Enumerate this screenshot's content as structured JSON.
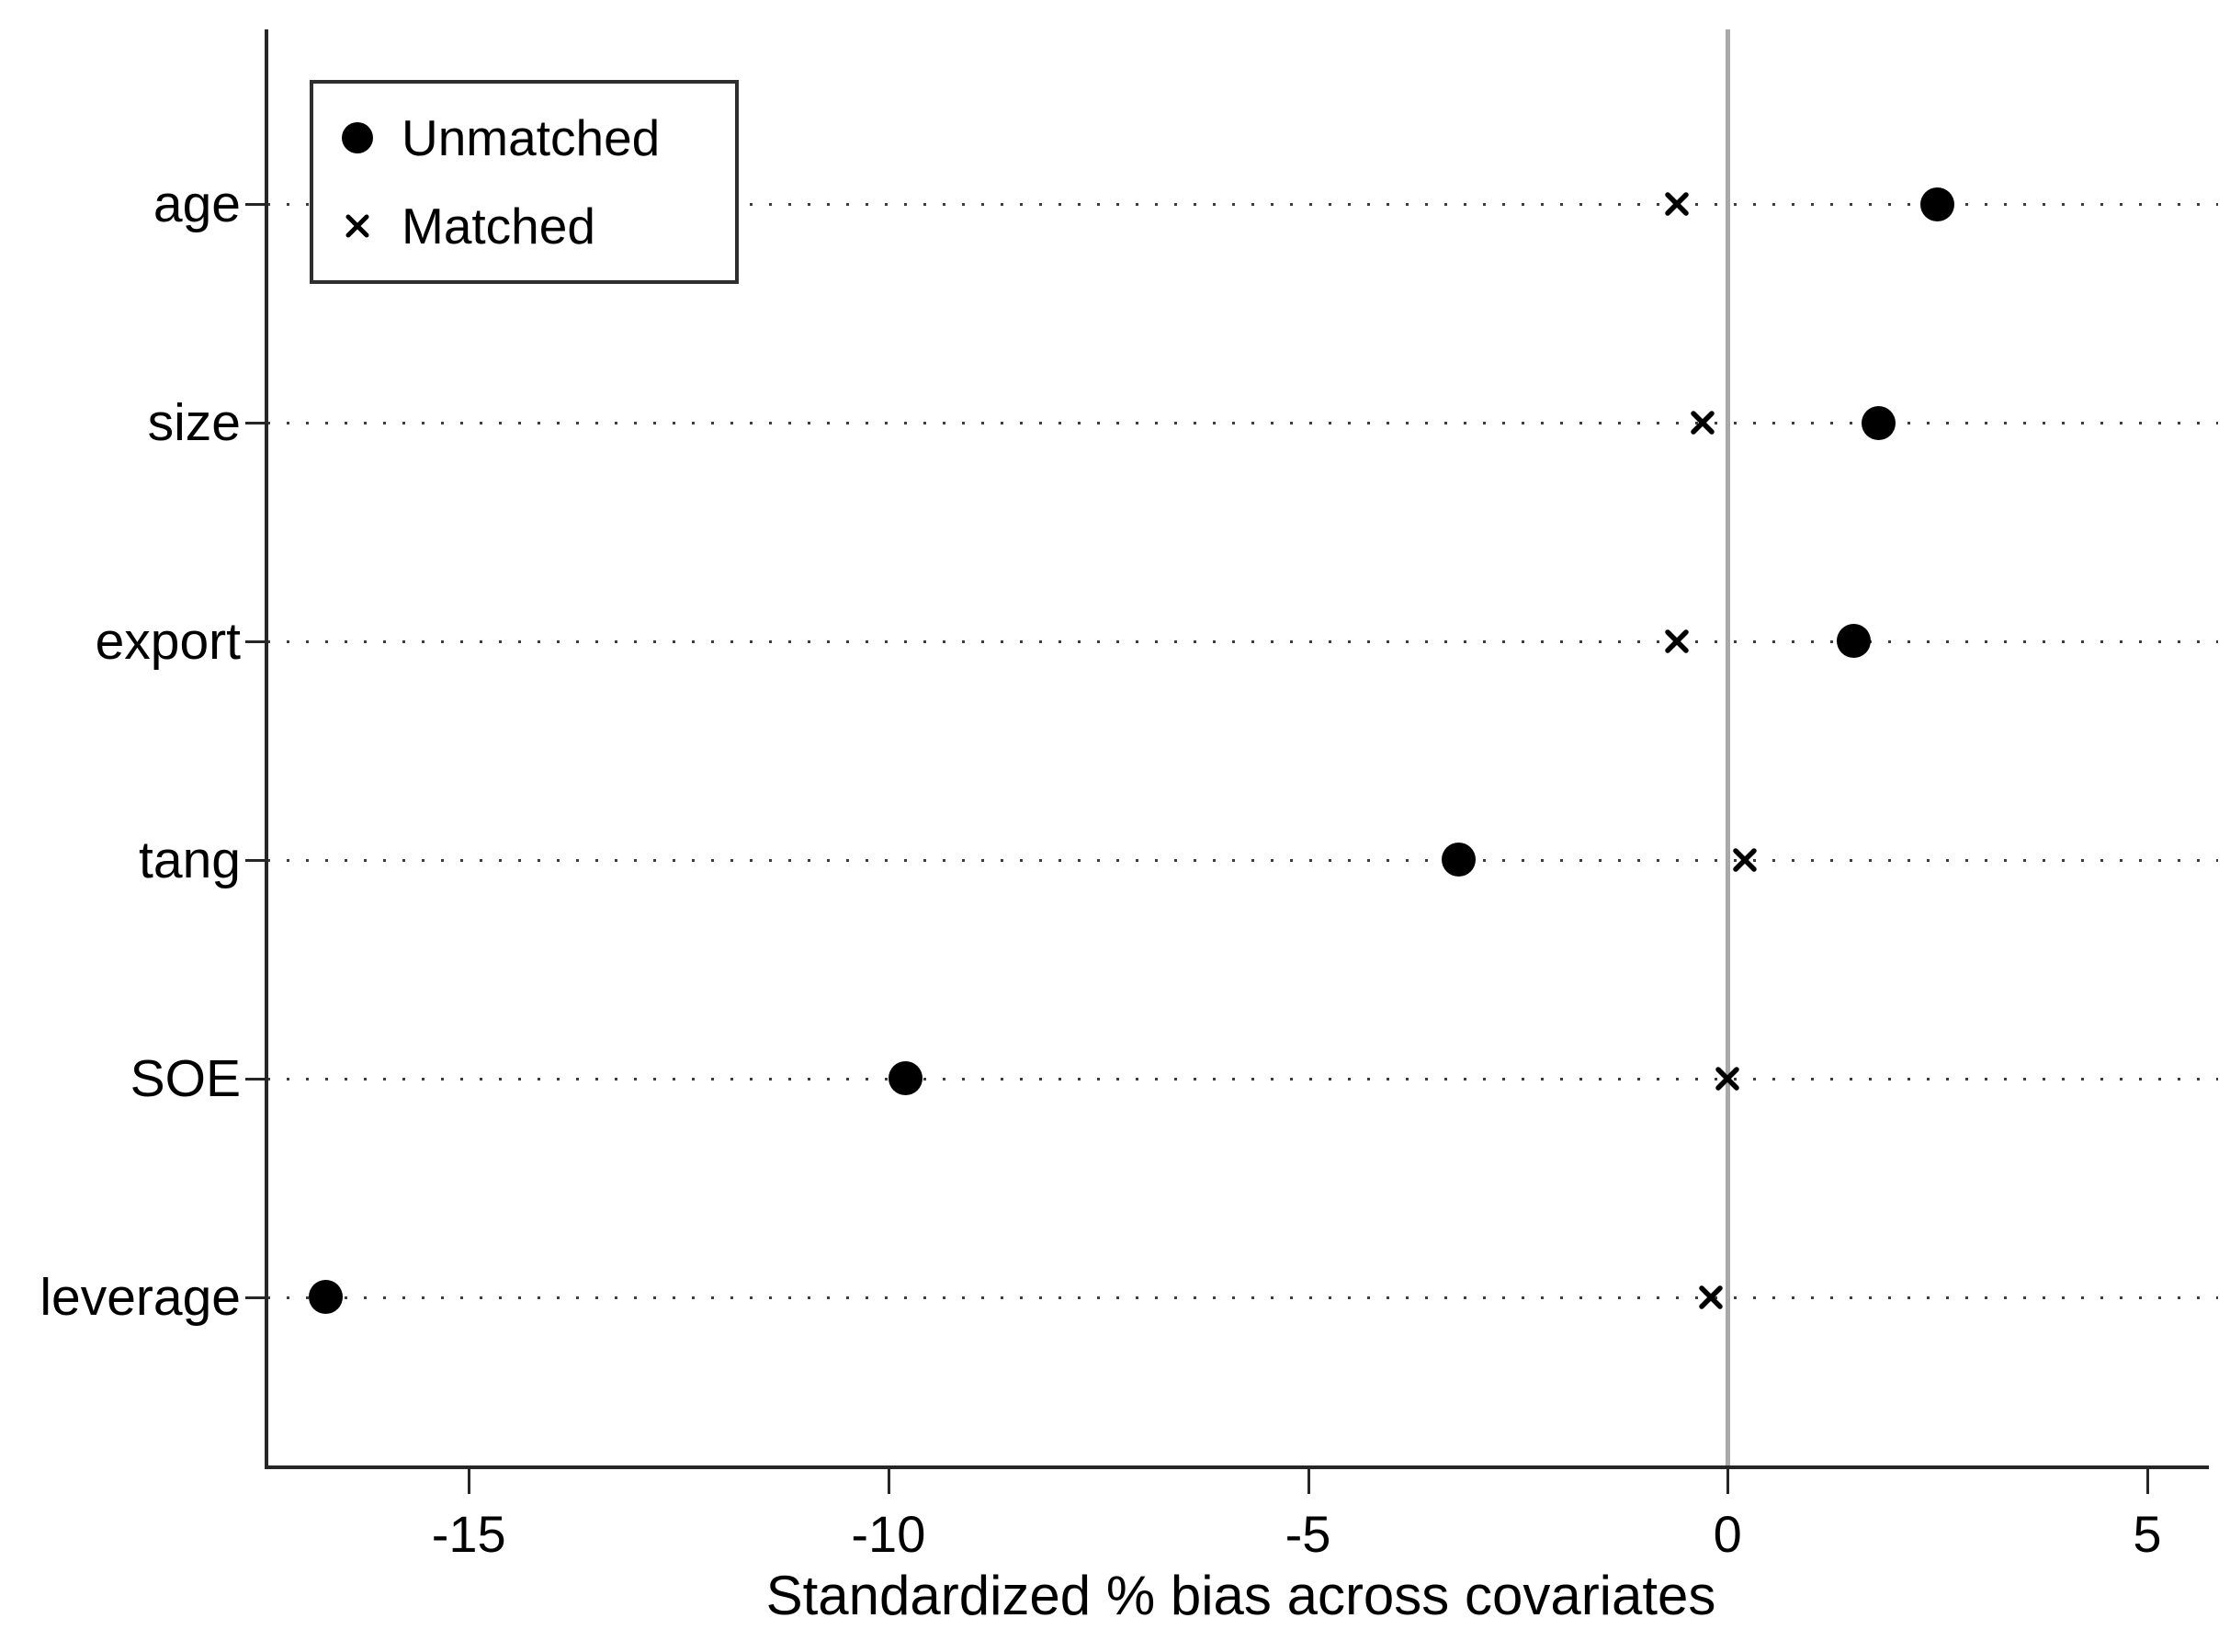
{
  "figure": {
    "background": "#ffffff"
  },
  "chart_data": {
    "type": "scatter",
    "title": "",
    "xlabel": "Standardized % bias across covariates",
    "ylabel": "",
    "categories": [
      "age",
      "size",
      "export",
      "tang",
      "SOE",
      "leverage"
    ],
    "series": [
      {
        "name": "Unmatched",
        "marker": "filled-circle",
        "values": [
          2.5,
          1.8,
          1.5,
          -3.2,
          -9.8,
          -16.7
        ]
      },
      {
        "name": "Matched",
        "marker": "x-cross",
        "values": [
          -0.6,
          -0.3,
          -0.6,
          0.2,
          0.0,
          -0.2
        ]
      }
    ],
    "x_ticks": [
      -15,
      -10,
      -5,
      0,
      5
    ],
    "x_tick_labels": [
      "-15",
      "-10",
      "-5",
      "0",
      "5"
    ],
    "xlim": [
      -17.4,
      5.8
    ],
    "reference_line_x": 0,
    "grid": "dotted-horizontal",
    "legend_position": "top-left",
    "row_start_frac": 0.1216,
    "row_step_frac": 0.15225,
    "colors": {
      "marker": "#000000",
      "axis": "#262626",
      "reference_line": "#a9a9a9",
      "grid_dots": "#3c3c3c",
      "background": "#ffffff"
    }
  }
}
